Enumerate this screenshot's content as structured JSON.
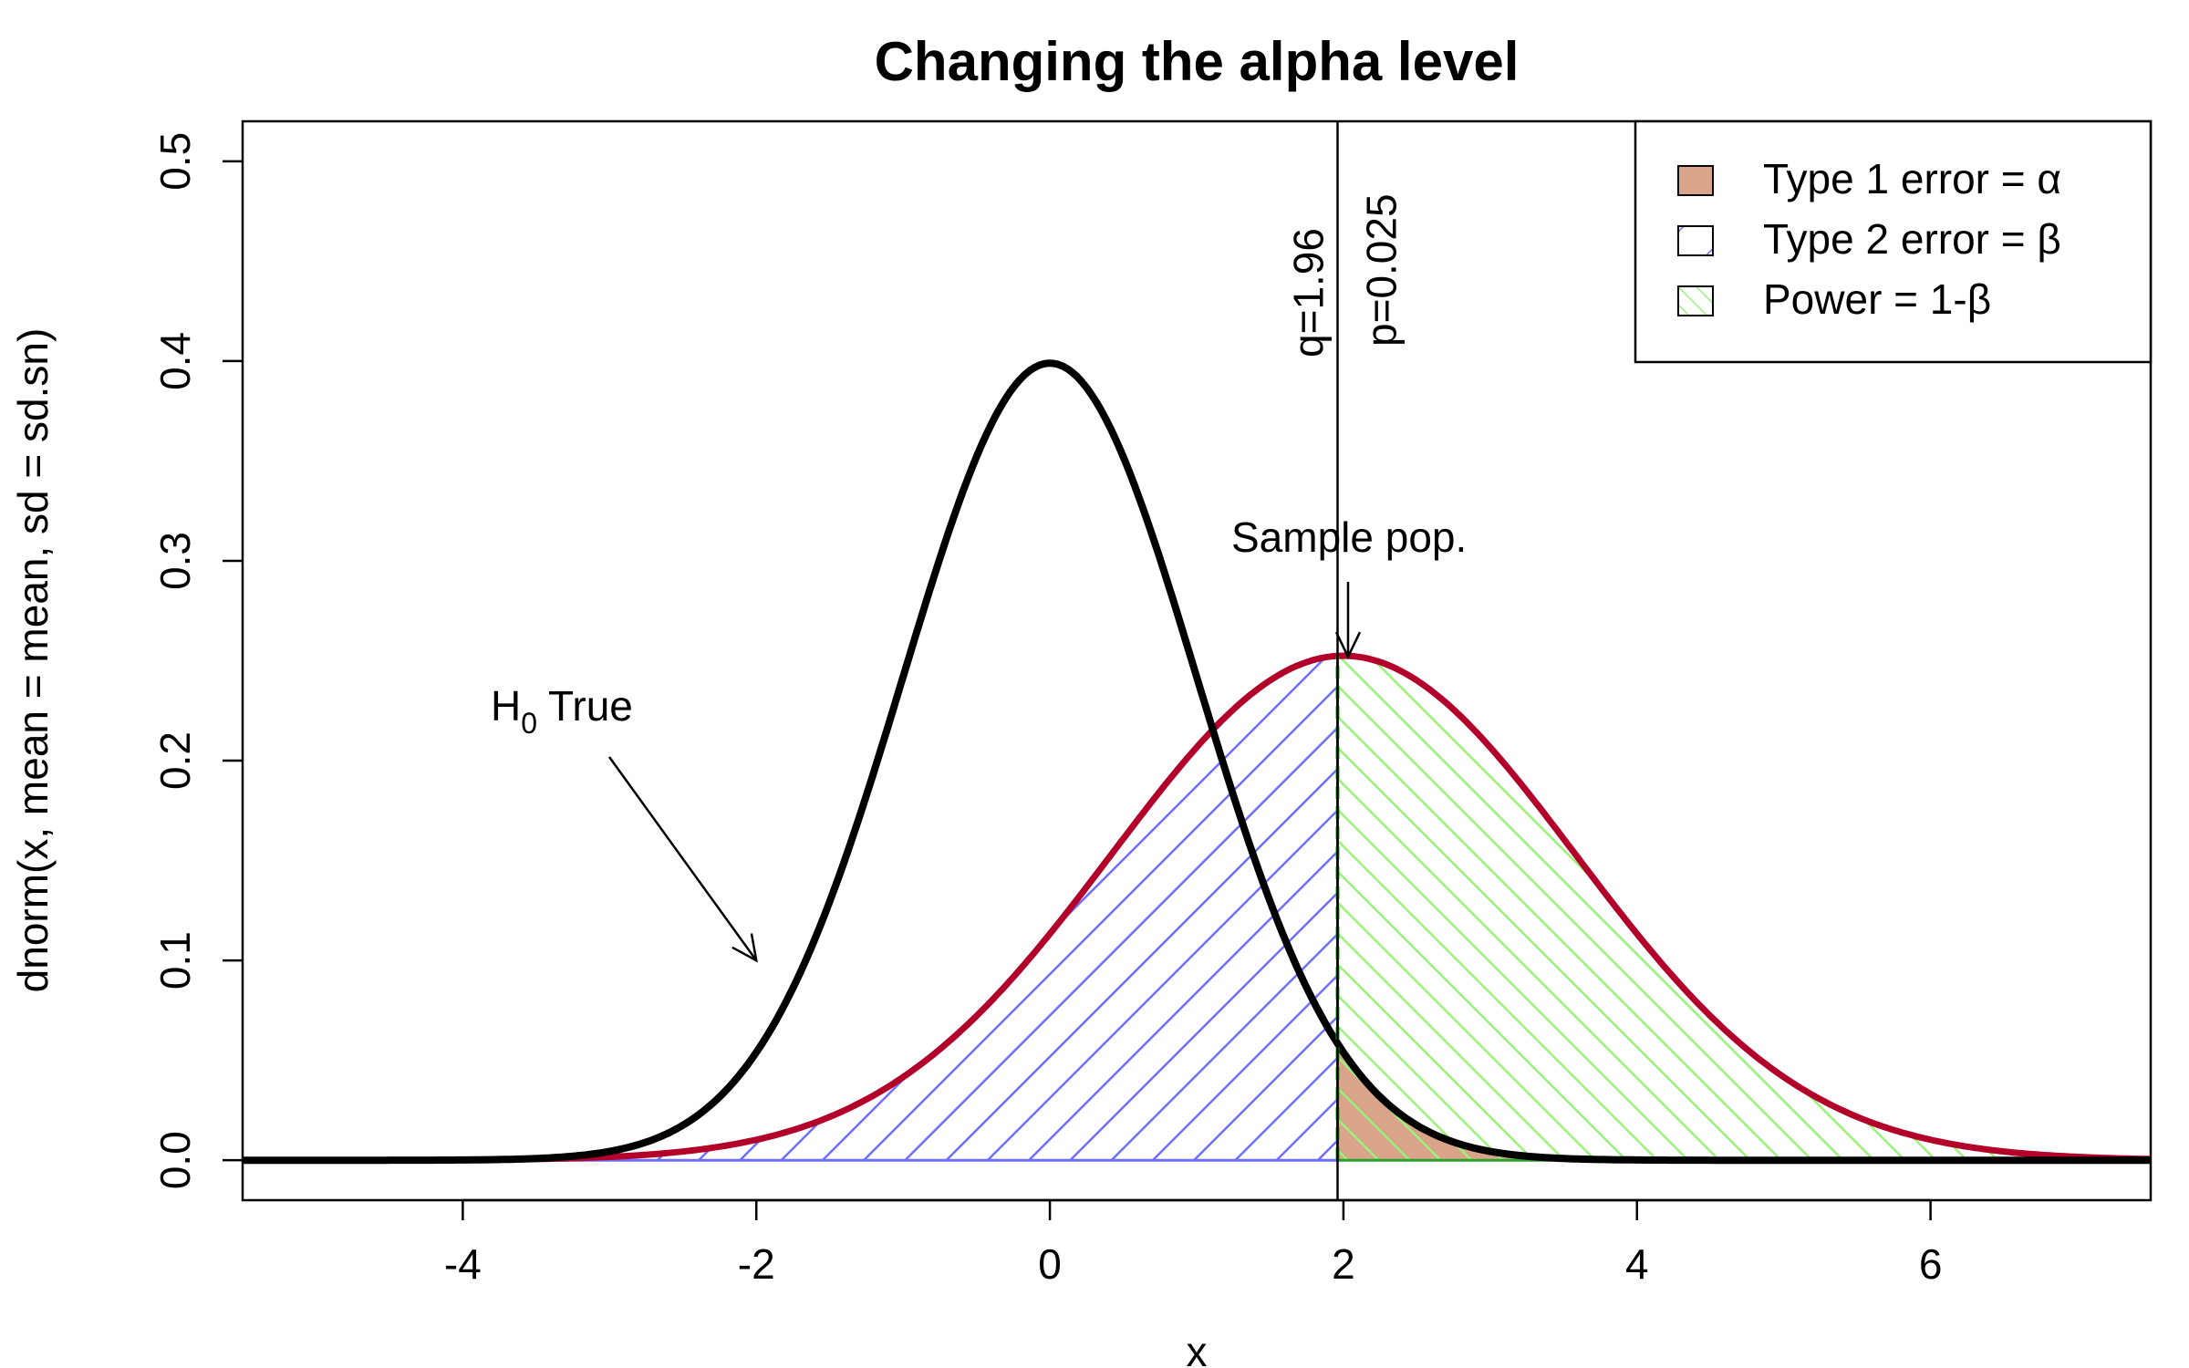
{
  "chart_data": {
    "type": "area",
    "title": "Changing the alpha level",
    "xlabel": "x",
    "ylabel": "dnorm(x, mean = mean, sd = sd.sn)",
    "xlim": [
      -5.5,
      7.5
    ],
    "ylim": [
      -0.02,
      0.52
    ],
    "x_ticks": [
      -4,
      -2,
      0,
      2,
      4,
      6
    ],
    "x_tick_labels": [
      "-4",
      "-2",
      "0",
      "2",
      "4",
      "6"
    ],
    "y_ticks": [
      0.0,
      0.1,
      0.2,
      0.3,
      0.4,
      0.5
    ],
    "y_tick_labels": [
      "0.0",
      "0.1",
      "0.2",
      "0.3",
      "0.4",
      "0.5"
    ],
    "grid": false,
    "series": [
      {
        "name": "H0 True",
        "kind": "normal-density",
        "mean": 0,
        "sd": 1,
        "color": "#000000"
      },
      {
        "name": "Sample pop.",
        "kind": "normal-density",
        "mean": 2,
        "sd": 1.58,
        "color": "#b2002a"
      }
    ],
    "critical_value": {
      "q": 1.96,
      "p": 0.025,
      "q_label": "q=1.96",
      "p_label": "p=0.025"
    },
    "annotations": [
      {
        "text_main": "H",
        "text_sub": "0",
        "text_rest": " True",
        "x": -3.2,
        "y": 0.225,
        "arrow_to": [
          -2.0,
          0.1
        ]
      },
      {
        "text_main": "Sample pop.",
        "x": 2.2,
        "y": 0.31,
        "arrow_to": [
          2.0,
          0.252
        ]
      }
    ],
    "shaded_regions": [
      {
        "name": "Type 2 error = β",
        "from": -5.5,
        "to": 1.96,
        "under": "Sample pop.",
        "fill": "hatch",
        "color": "#6666ff"
      },
      {
        "name": "Type 1 error = α",
        "from": 1.96,
        "to": 7.5,
        "under": "H0 True",
        "fill": "solid",
        "color": "#d9a48a"
      },
      {
        "name": "Power = 1-β",
        "from": 1.96,
        "to": 7.5,
        "under": "Sample pop.",
        "fill": "hatch",
        "color": "#88ee66"
      }
    ],
    "legend": {
      "position": "top-right",
      "items": [
        {
          "label": "Type 1 error = α",
          "style": "solid",
          "color": "#d9a48a"
        },
        {
          "label": "Type 2 error = β",
          "style": "hatch-right",
          "color": "#6666ff"
        },
        {
          "label": "Power = 1-β",
          "style": "hatch-left",
          "color": "#88ee66"
        }
      ]
    }
  }
}
